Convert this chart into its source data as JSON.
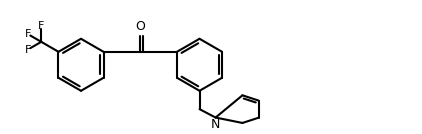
{
  "background": "#ffffff",
  "line_color": "#000000",
  "line_width": 1.5,
  "font_size": 8.5,
  "fig_width": 4.22,
  "fig_height": 1.34,
  "dpi": 100,
  "xlim": [
    0,
    11
  ],
  "ylim": [
    0,
    3.1
  ]
}
